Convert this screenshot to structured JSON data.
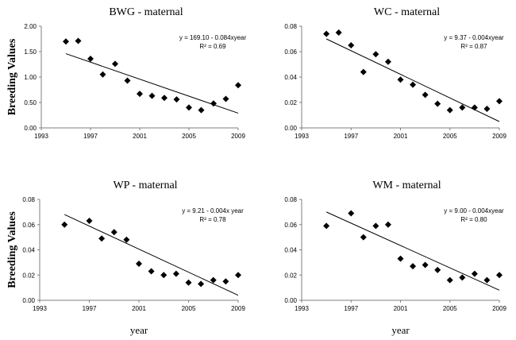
{
  "chart_data": [
    {
      "type": "scatter",
      "title": "BWG - maternal",
      "xlabel": "",
      "ylabel": "Breeding Values",
      "xlim": [
        1993,
        2009
      ],
      "ylim": [
        0,
        2
      ],
      "x_ticks": [
        "1993",
        "1997",
        "2001",
        "2005",
        "2009"
      ],
      "y_ticks": [
        "0.00",
        "0.50",
        "1.00",
        "1.50",
        "2.00"
      ],
      "grid": false,
      "equation": "y = 169.10 - 0.084xyear",
      "r_squared": "R² = 0.69",
      "trendline_endpoints": {
        "x": [
          1995,
          2009
        ],
        "y": [
          1.46,
          0.29
        ]
      },
      "x": [
        1995,
        1996,
        1997,
        1998,
        1999,
        2000,
        2001,
        2002,
        2003,
        2004,
        2005,
        2006,
        2007,
        2008,
        2009
      ],
      "y": [
        1.7,
        1.71,
        1.36,
        1.05,
        1.26,
        0.93,
        0.67,
        0.63,
        0.59,
        0.56,
        0.4,
        0.35,
        0.48,
        0.57,
        0.84
      ]
    },
    {
      "type": "scatter",
      "title": "WC - maternal",
      "xlabel": "",
      "ylabel": "",
      "xlim": [
        1993,
        2009
      ],
      "ylim": [
        0,
        0.08
      ],
      "x_ticks": [
        "1993",
        "1997",
        "2001",
        "2005",
        "2009"
      ],
      "y_ticks": [
        "0.00",
        "0.02",
        "0.04",
        "0.06",
        "0.08"
      ],
      "grid": false,
      "equation": "y = 9.37 - 0.004xyear",
      "r_squared": "R² = 0.87",
      "trendline_endpoints": {
        "x": [
          1995,
          2009
        ],
        "y": [
          0.07,
          0.005
        ]
      },
      "x": [
        1995,
        1996,
        1997,
        1998,
        1999,
        2000,
        2001,
        2002,
        2003,
        2004,
        2005,
        2006,
        2007,
        2008,
        2009
      ],
      "y": [
        0.074,
        0.075,
        0.065,
        0.044,
        0.058,
        0.052,
        0.038,
        0.034,
        0.026,
        0.019,
        0.014,
        0.016,
        0.016,
        0.015,
        0.021
      ]
    },
    {
      "type": "scatter",
      "title": "WP - maternal",
      "xlabel": "year",
      "ylabel": "Breeding Values",
      "xlim": [
        1993,
        2009
      ],
      "ylim": [
        0,
        0.08
      ],
      "x_ticks": [
        "1993",
        "1997",
        "2001",
        "2005",
        "2009"
      ],
      "y_ticks": [
        "0.00",
        "0.02",
        "0.04",
        "0.06",
        "0.08"
      ],
      "grid": false,
      "equation": "y = 9.21 - 0.004x year",
      "r_squared": "R² = 0.78",
      "trendline_endpoints": {
        "x": [
          1995,
          2009
        ],
        "y": [
          0.068,
          0.004
        ]
      },
      "x": [
        1995,
        1997,
        1998,
        1999,
        2000,
        2001,
        2002,
        2003,
        2004,
        2005,
        2006,
        2007,
        2008,
        2009
      ],
      "y": [
        0.06,
        0.063,
        0.049,
        0.054,
        0.048,
        0.029,
        0.023,
        0.02,
        0.021,
        0.014,
        0.013,
        0.016,
        0.015,
        0.02
      ]
    },
    {
      "type": "scatter",
      "title": "WM - maternal",
      "xlabel": "year",
      "ylabel": "",
      "xlim": [
        1993,
        2009
      ],
      "ylim": [
        0,
        0.08
      ],
      "x_ticks": [
        "1993",
        "1997",
        "2001",
        "2005",
        "2009"
      ],
      "y_ticks": [
        "0.00",
        "0.02",
        "0.04",
        "0.06",
        "0.08"
      ],
      "grid": false,
      "equation": "y = 9.00 - 0.004xyear",
      "r_squared": "R² = 0.80",
      "trendline_endpoints": {
        "x": [
          1995,
          2009
        ],
        "y": [
          0.07,
          0.008
        ]
      },
      "x": [
        1995,
        1997,
        1998,
        1999,
        2000,
        2001,
        2002,
        2003,
        2004,
        2005,
        2006,
        2007,
        2008,
        2009
      ],
      "y": [
        0.059,
        0.069,
        0.05,
        0.059,
        0.06,
        0.033,
        0.027,
        0.028,
        0.024,
        0.016,
        0.018,
        0.021,
        0.016,
        0.02
      ]
    }
  ]
}
